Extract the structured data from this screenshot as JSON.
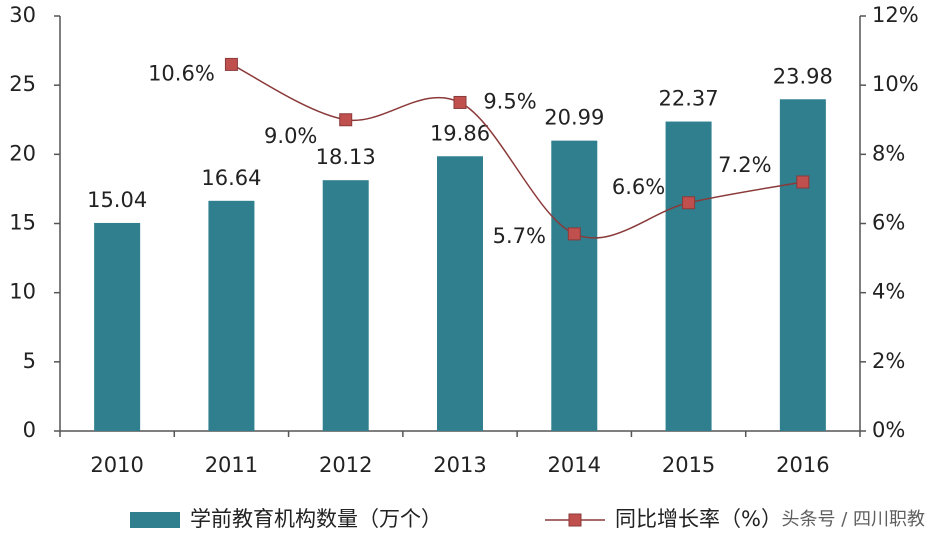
{
  "chart_data": {
    "type": "bar-line",
    "categories": [
      "2010",
      "2011",
      "2012",
      "2013",
      "2014",
      "2015",
      "2016"
    ],
    "series": [
      {
        "name": "学前教育机构数量（万个）",
        "color": "#2f7f8e",
        "type": "bar",
        "values": [
          15.04,
          16.64,
          18.13,
          19.86,
          20.99,
          22.37,
          23.98
        ]
      },
      {
        "name": "同比增长率（%）",
        "color": "#c0504d",
        "line_color": "#8b3a3a",
        "type": "line",
        "axis": "y2",
        "values": [
          null,
          10.6,
          9.0,
          9.5,
          5.7,
          6.6,
          7.2
        ],
        "value_labels": [
          null,
          "10.6%",
          "9.0%",
          "9.5%",
          "5.7%",
          "6.6%",
          "7.2%"
        ]
      }
    ],
    "ylim": [
      0,
      30
    ],
    "yticks": [
      0,
      5,
      10,
      15,
      20,
      25,
      30
    ],
    "y2lim": [
      0,
      12
    ],
    "y2ticks": [
      {
        "value": 0,
        "label": "0%"
      },
      {
        "value": 2,
        "label": "2%"
      },
      {
        "value": 4,
        "label": "4%"
      },
      {
        "value": 6,
        "label": "6%"
      },
      {
        "value": 8,
        "label": "8%"
      },
      {
        "value": 10,
        "label": "10%"
      },
      {
        "value": 12,
        "label": "12%"
      }
    ],
    "grid": false,
    "legend": "bottom",
    "watermark": "头条号 / 四川职教"
  }
}
